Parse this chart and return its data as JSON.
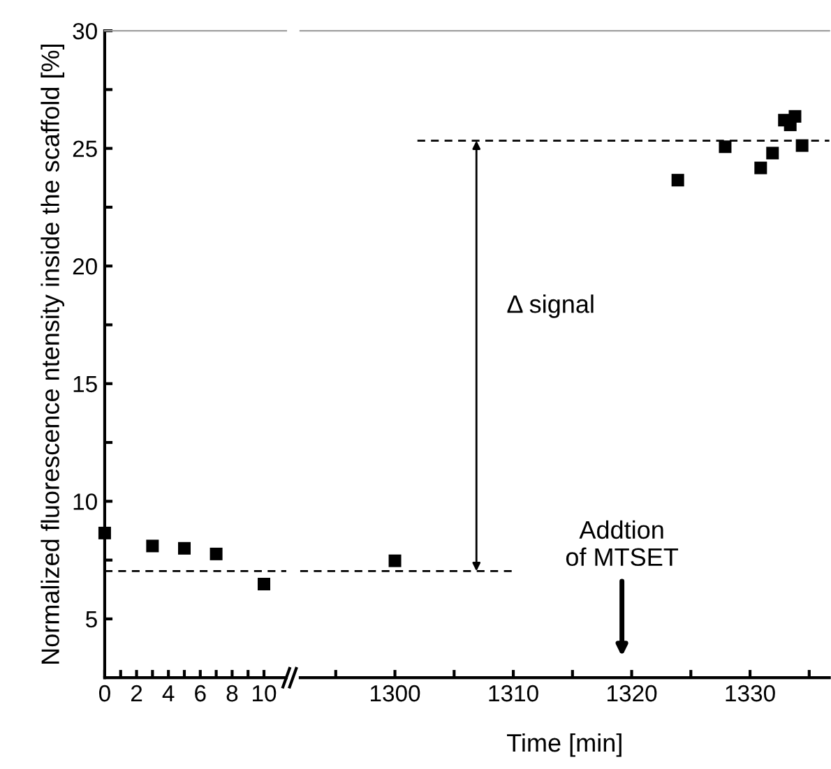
{
  "chart_data": [
    {
      "type": "scatter",
      "ylabel": "Normalized fluorescence ntensity inside the scaffold [%]",
      "xlim": [
        0,
        11.4
      ],
      "ylim": [
        2.5,
        30
      ],
      "xticks": [
        0,
        {
          "value": 1,
          "label": null
        },
        2,
        {
          "value": 3,
          "label": null
        },
        4,
        {
          "value": 5,
          "label": null
        },
        6,
        {
          "value": 7,
          "label": null
        },
        8,
        {
          "value": 9,
          "label": null
        },
        10
      ],
      "yticks": [
        5,
        {
          "value": 7.5,
          "label": null
        },
        10,
        {
          "value": 12.5,
          "label": null
        },
        15,
        {
          "value": 17.5,
          "label": null
        },
        20,
        {
          "value": 22.5,
          "label": null
        },
        25,
        {
          "value": 27.5,
          "label": null
        },
        30
      ],
      "grid": false,
      "series": [
        {
          "color": "#000000",
          "marker": "square",
          "x": [
            0,
            3,
            5,
            7,
            10
          ],
          "values": [
            8.65,
            8.1,
            8.0,
            7.76,
            6.48
          ]
        },
        {
          "type": "line",
          "marker": "none",
          "line_style": "dashed",
          "color": "#000000",
          "x": [
            0,
            11.4
          ],
          "values": [
            7.03,
            7.03
          ]
        }
      ]
    },
    {
      "type": "scatter",
      "xlabel": "Time [min]",
      "xlim": [
        1292,
        1336.7
      ],
      "ylim": [
        2.5,
        30
      ],
      "tick_labels": "x",
      "xticks": [
        {
          "value": 1295,
          "label": null
        },
        1300,
        {
          "value": 1305,
          "label": null
        },
        1310,
        {
          "value": 1315,
          "label": null
        },
        1320,
        {
          "value": 1325,
          "label": null
        },
        1330,
        {
          "value": 1335,
          "label": null
        }
      ],
      "grid": false,
      "series": [
        {
          "color": "#000000",
          "marker": "square",
          "x": [
            1300,
            1323.9,
            1327.9,
            1330.9,
            1331.9,
            1332.9,
            1333.4,
            1333.8,
            1334.4
          ],
          "values": [
            7.47,
            23.65,
            25.07,
            24.17,
            24.8,
            26.2,
            26.0,
            26.36,
            25.12
          ]
        },
        {
          "type": "line",
          "marker": "none",
          "line_style": "dashed",
          "color": "#000000",
          "x": [
            1292,
            1310
          ],
          "values": [
            7.03,
            7.03
          ]
        },
        {
          "type": "line",
          "marker": "none",
          "line_style": "dashed",
          "color": "#000000",
          "x": [
            1301.9,
            1336.7
          ],
          "values": [
            25.33,
            25.33
          ]
        }
      ],
      "annotations": [
        "Δ signal",
        "Addtion\nof MTSET"
      ]
    }
  ]
}
